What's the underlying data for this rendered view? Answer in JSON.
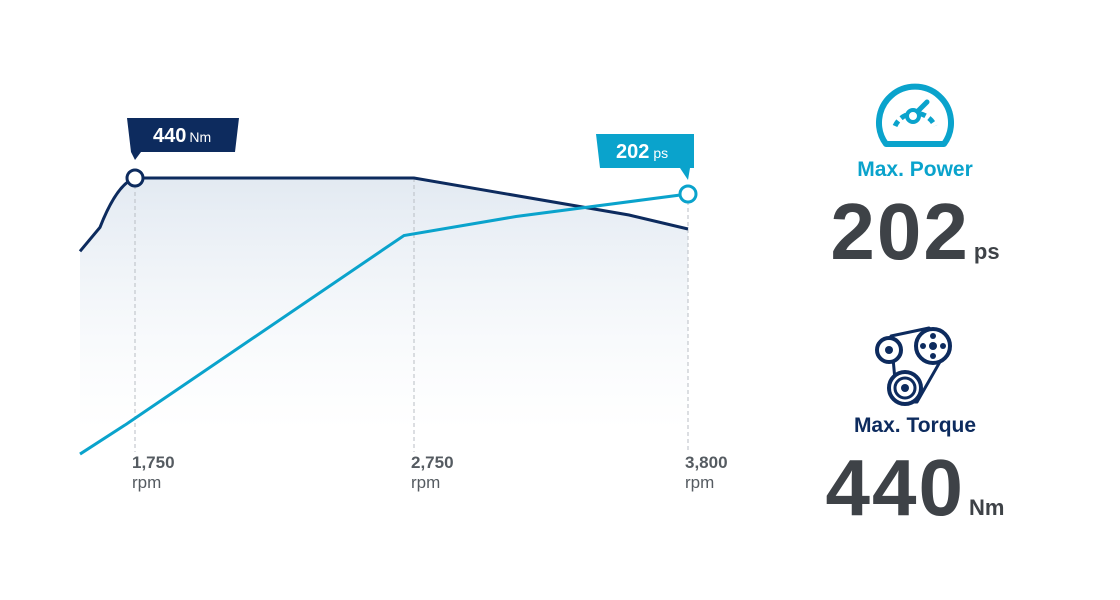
{
  "chart_data": {
    "type": "line",
    "x": [
      1500,
      1750,
      2750,
      3800
    ],
    "series": [
      {
        "name": "",
        "unit": "Nm",
        "values": [
          325,
          440,
          440,
          360
        ]
      },
      {
        "name": "",
        "unit": "ps",
        "values": [
          70,
          135,
          185,
          202
        ]
      }
    ],
    "x_ticks": [
      {
        "value": "1,750",
        "unit": "rpm"
      },
      {
        "value": "2,750",
        "unit": "rpm"
      },
      {
        "value": "3,800",
        "unit": "rpm"
      }
    ],
    "xlabel": "",
    "ylabel": "",
    "grid": false,
    "annotations": [
      {
        "series": 0,
        "value": "440",
        "unit": "Nm"
      },
      {
        "series": 1,
        "value": "202",
        "unit": "ps"
      }
    ],
    "colors": {
      "torque": "#0d2b5e",
      "power": "#0aa3cc"
    }
  },
  "specs": {
    "power": {
      "icon": "speedometer-icon",
      "label": "Max. Power",
      "value": "202",
      "unit": "ps"
    },
    "torque": {
      "icon": "belt-pulley-icon",
      "label": "Max. Torque",
      "value": "440",
      "unit": "Nm"
    }
  }
}
